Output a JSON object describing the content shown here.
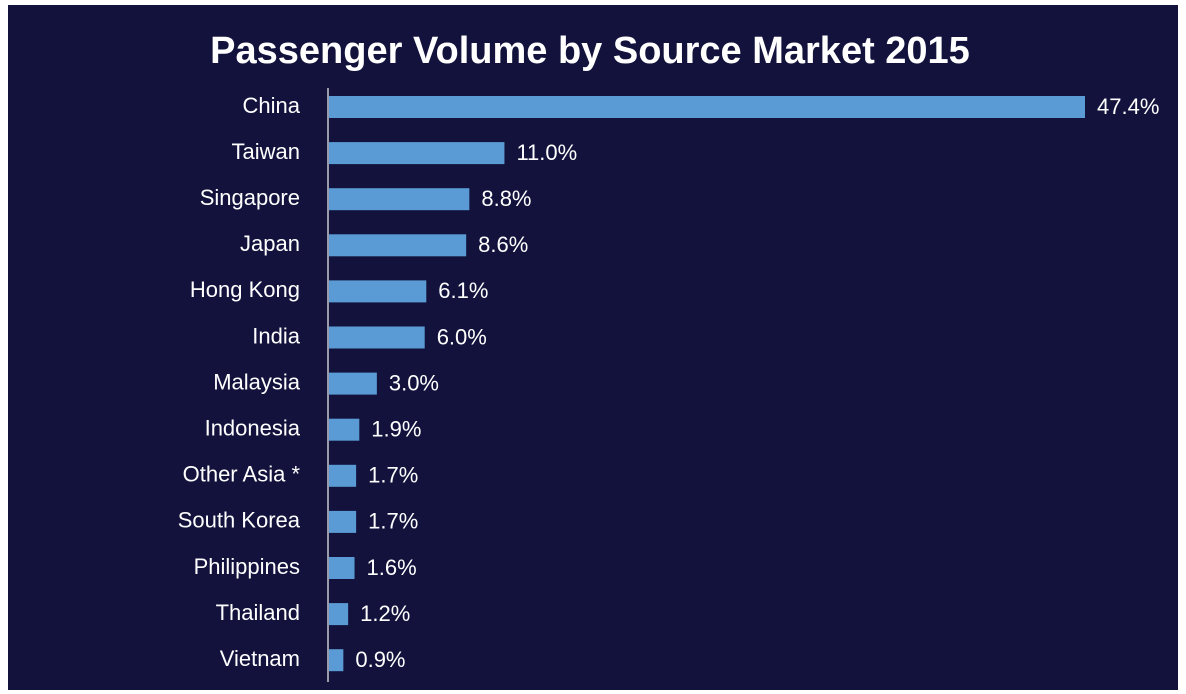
{
  "chart_data": {
    "type": "bar",
    "orientation": "horizontal",
    "title": "Passenger Volume by Source Market 2015",
    "categories": [
      "China",
      "Taiwan",
      "Singapore",
      "Japan",
      "Hong Kong",
      "India",
      "Malaysia",
      "Indonesia",
      "Other Asia *",
      "South Korea",
      "Philippines",
      "Thailand",
      "Vietnam"
    ],
    "values": [
      47.4,
      11.0,
      8.8,
      8.6,
      6.1,
      6.0,
      3.0,
      1.9,
      1.7,
      1.7,
      1.6,
      1.2,
      0.9
    ],
    "value_labels": [
      "47.4%",
      "11.0%",
      "8.8%",
      "8.6%",
      "6.1%",
      "6.0%",
      "3.0%",
      "1.9%",
      "1.7%",
      "1.7%",
      "1.6%",
      "1.2%",
      "0.9%"
    ],
    "color": "#5b9bd5"
  }
}
